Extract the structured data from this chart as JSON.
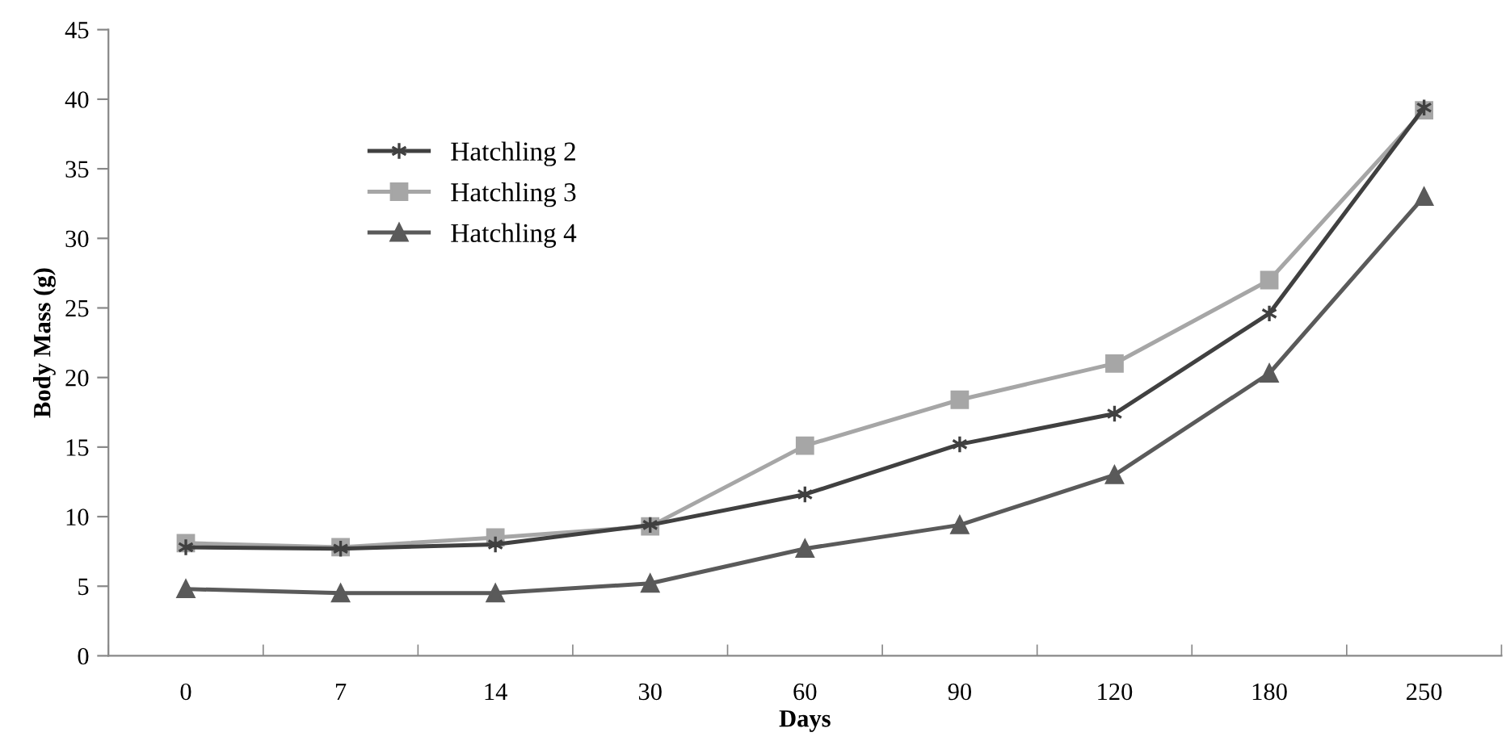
{
  "chart_data": {
    "type": "line",
    "xlabel": "Days",
    "ylabel": "Body Mass (g)",
    "categories": [
      "0",
      "7",
      "14",
      "30",
      "60",
      "90",
      "120",
      "180",
      "250"
    ],
    "ylim": [
      0,
      45
    ],
    "yticks": [
      0,
      5,
      10,
      15,
      20,
      25,
      30,
      35,
      40,
      45
    ],
    "grid": false,
    "legend": "top left",
    "line_style": "solid",
    "series": [
      {
        "name": "Hatchling 2",
        "color": "#404040",
        "marker": "cross",
        "values": [
          7.8,
          7.7,
          8.0,
          9.4,
          11.6,
          15.2,
          17.4,
          24.6,
          39.4
        ]
      },
      {
        "name": "Hatchling 3",
        "color": "#a6a6a6",
        "marker": "square",
        "values": [
          8.1,
          7.8,
          8.5,
          9.3,
          15.1,
          18.4,
          21.0,
          27.0,
          39.2
        ]
      },
      {
        "name": "Hatchling 4",
        "color": "#5a5a5a",
        "marker": "triangle",
        "values": [
          4.8,
          4.5,
          4.5,
          5.2,
          7.7,
          9.4,
          13.0,
          20.3,
          33.0
        ]
      }
    ]
  }
}
